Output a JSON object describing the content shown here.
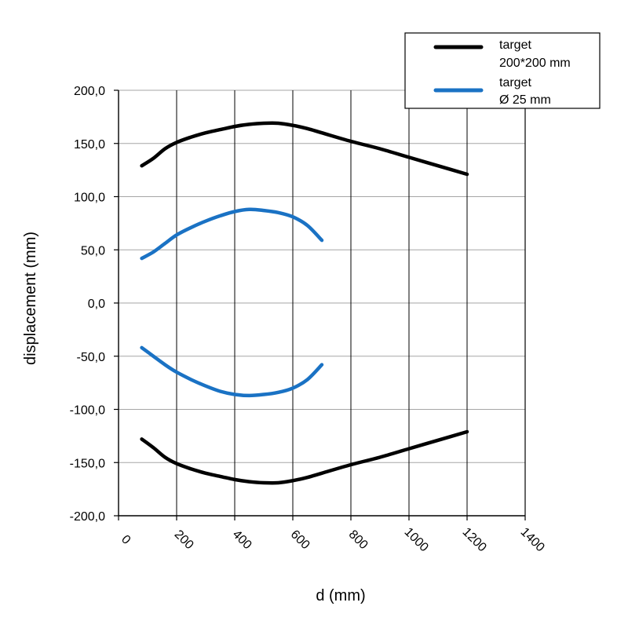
{
  "chart_data": {
    "type": "line",
    "xlabel": "d (mm)",
    "ylabel": "displacement (mm)",
    "xlim": [
      0,
      1400
    ],
    "ylim": [
      -200,
      200
    ],
    "xticks": [
      0,
      200,
      400,
      600,
      800,
      1000,
      1200,
      1400
    ],
    "xtick_labels": [
      "0",
      "200",
      "400",
      "600",
      "800",
      "1000",
      "1200",
      "1400"
    ],
    "yticks": [
      200,
      150,
      100,
      50,
      0,
      -50,
      -100,
      -150,
      -200
    ],
    "ytick_labels": [
      "200,0",
      "150,0",
      "100,0",
      "50,0",
      "0,0",
      "-50,0",
      "-100,0",
      "-150,0",
      "-200,0"
    ],
    "grid": true,
    "legend_position": "top-right",
    "legend": [
      {
        "line1": "target",
        "line2": "200*200 mm",
        "color": "#000000"
      },
      {
        "line1": "target",
        "line2": "Ø 25 mm",
        "color": "#1a72c4"
      }
    ],
    "series": [
      {
        "color": "#000000",
        "x": [
          80,
          120,
          160,
          200,
          250,
          300,
          350,
          400,
          450,
          500,
          550,
          600,
          650,
          700,
          800,
          900,
          1000,
          1100,
          1200
        ],
        "y": [
          129,
          136,
          145,
          151,
          156,
          160,
          163,
          166,
          168,
          169,
          169,
          167,
          164,
          160,
          152,
          145,
          137,
          129,
          121
        ]
      },
      {
        "color": "#000000",
        "x": [
          80,
          120,
          160,
          200,
          250,
          300,
          350,
          400,
          450,
          500,
          550,
          600,
          650,
          700,
          800,
          900,
          1000,
          1100,
          1200
        ],
        "y": [
          -128,
          -136,
          -145,
          -151,
          -156,
          -160,
          -163,
          -166,
          -168,
          -169,
          -169,
          -167,
          -164,
          -160,
          -152,
          -145,
          -137,
          -129,
          -121
        ]
      },
      {
        "color": "#1a72c4",
        "x": [
          80,
          120,
          160,
          200,
          250,
          300,
          350,
          400,
          450,
          500,
          550,
          600,
          650,
          700
        ],
        "y": [
          42,
          48,
          56,
          64,
          71,
          77,
          82,
          86,
          88,
          87,
          85,
          81,
          73,
          59
        ]
      },
      {
        "color": "#1a72c4",
        "x": [
          80,
          120,
          160,
          200,
          250,
          300,
          350,
          400,
          450,
          500,
          550,
          600,
          650,
          700
        ],
        "y": [
          -42,
          -50,
          -58,
          -65,
          -72,
          -78,
          -83,
          -86,
          -87,
          -86,
          -84,
          -80,
          -72,
          -58
        ]
      }
    ]
  }
}
